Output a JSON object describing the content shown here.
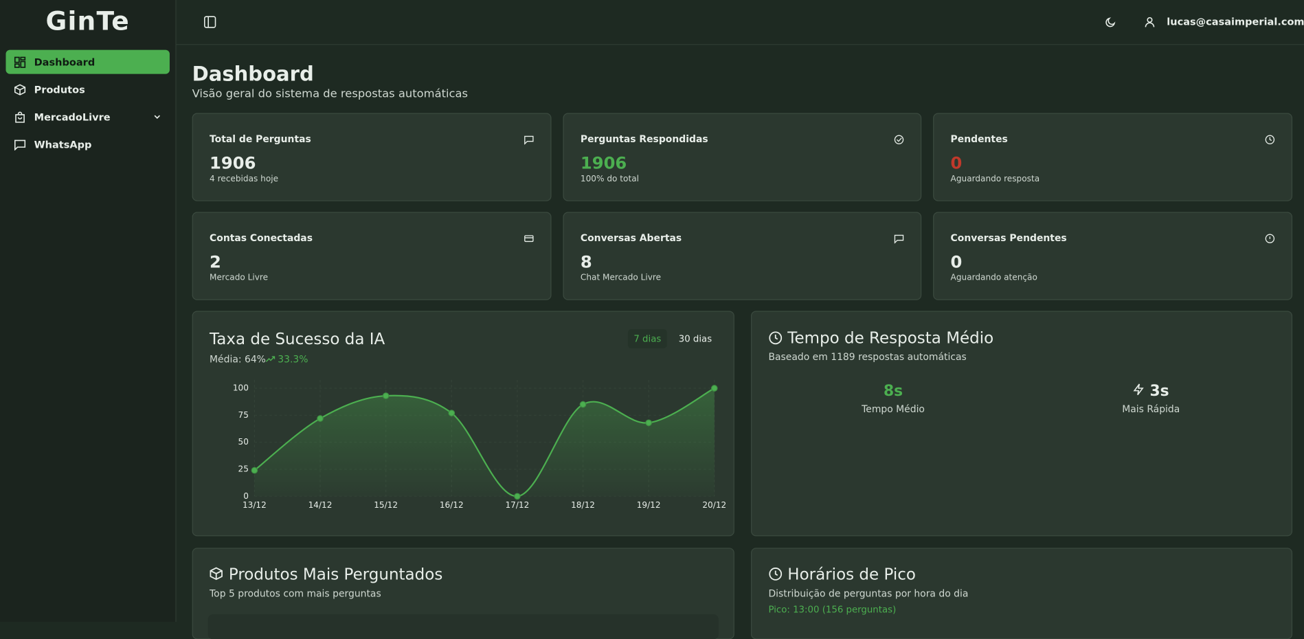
{
  "sidebar": {
    "logo": "GinTe",
    "menu": [
      "Dashboard",
      "Produtos",
      "MercadoLivre",
      "WhatsApp"
    ]
  },
  "header": {
    "user": "lucas@casaimperial.com.br"
  },
  "page": {
    "title": "Dashboard",
    "subtitle": "Visão geral do sistema de respostas automáticas"
  },
  "stats": [
    {
      "label": "Total de Perguntas",
      "value": 1906,
      "note": "4 recebidas hoje"
    },
    {
      "label": "Perguntas Respondidas",
      "value": 1906,
      "note": "100% do total"
    },
    {
      "label": "Pendentes",
      "value": 0,
      "note": "Aguardando resposta"
    },
    {
      "label": "Contas Conectadas",
      "value": 2,
      "note": "Mercado Livre"
    },
    {
      "label": "Conversas Abertas",
      "value": 8,
      "note": "Chat Mercado Livre"
    },
    {
      "label": "Conversas Pendentes",
      "value": 0,
      "note": "Aguardando atenção"
    }
  ],
  "chart_data": {
    "type": "line",
    "title": "Taxa de Sucesso da IA",
    "subtitle": "Média: 64%",
    "trend": "33.3%",
    "ranges": [
      "7 dias",
      "30 dias"
    ],
    "categories": [
      "13/12",
      "14/12",
      "15/12",
      "16/12",
      "17/12",
      "18/12",
      "19/12",
      "20/12"
    ],
    "values": [
      24,
      72,
      93,
      77,
      0,
      85,
      68,
      100
    ],
    "color": "#4caf50",
    "ylim": [
      0,
      100
    ],
    "yticks": [
      0,
      25,
      50,
      75,
      100
    ],
    "grid": true
  },
  "response_time": {
    "title": "Tempo de Resposta Médio",
    "subtitle": "Baseado em 1189 respostas automáticas",
    "metrics": [
      {
        "value": "8s",
        "label": "Tempo Médio"
      },
      {
        "value": "3s",
        "label": "Mais Rápida"
      }
    ]
  },
  "products": {
    "title": "Produtos Mais Perguntados",
    "subtitle": "Top 5 produtos com mais perguntas"
  },
  "peak": {
    "title": "Horários de Pico",
    "subtitle": "Distribuição de perguntas por hora do dia",
    "highlight": "Pico: 13:00 (156 perguntas)"
  }
}
